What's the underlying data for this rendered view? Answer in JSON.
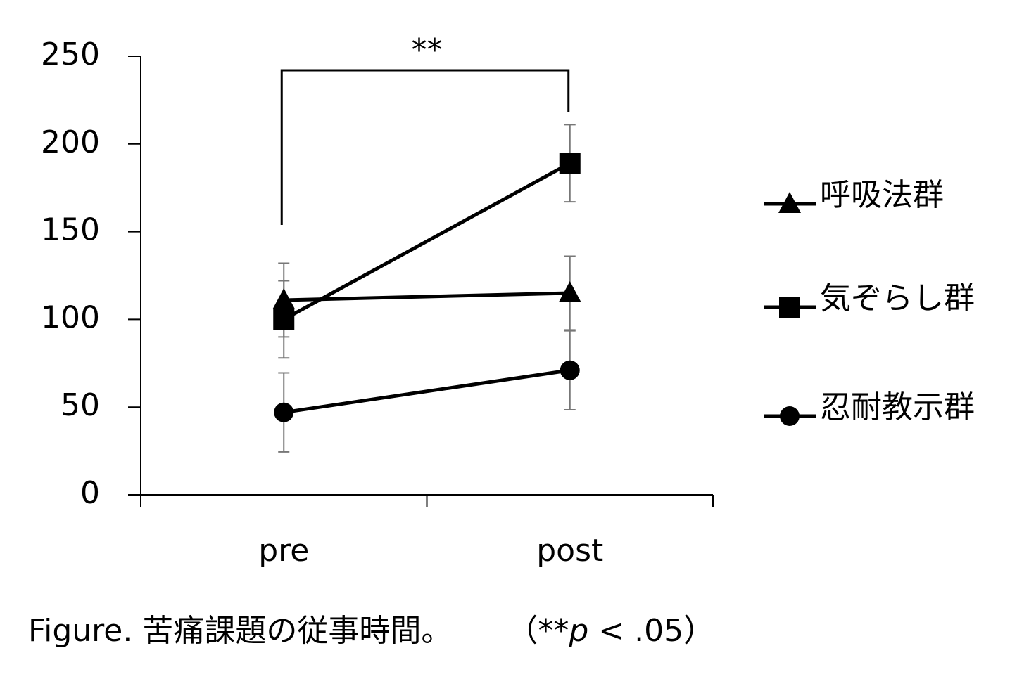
{
  "chart_data": {
    "type": "line",
    "categories": [
      "pre",
      "post"
    ],
    "series": [
      {
        "name": "呼吸法群",
        "color": "#000000",
        "marker": "triangle",
        "values": [
          111,
          115
        ],
        "errors": [
          21,
          21
        ]
      },
      {
        "name": "気ぞらし群",
        "color": "#000000",
        "marker": "square",
        "values": [
          100,
          189
        ],
        "errors": [
          22,
          22
        ]
      },
      {
        "name": "忍耐教示群",
        "color": "#000000",
        "marker": "circle",
        "values": [
          47,
          71
        ],
        "errors": [
          22.5,
          22.5
        ]
      }
    ],
    "ylim": [
      0,
      250
    ],
    "yticks": [
      0,
      50,
      100,
      150,
      200,
      250
    ],
    "error_bar_color": "#777777",
    "legend": "right",
    "annotation": "**",
    "caption": [
      "Figure. 苦痛課題の従事時間。",
      "（**",
      "p",
      " < .05）"
    ]
  }
}
